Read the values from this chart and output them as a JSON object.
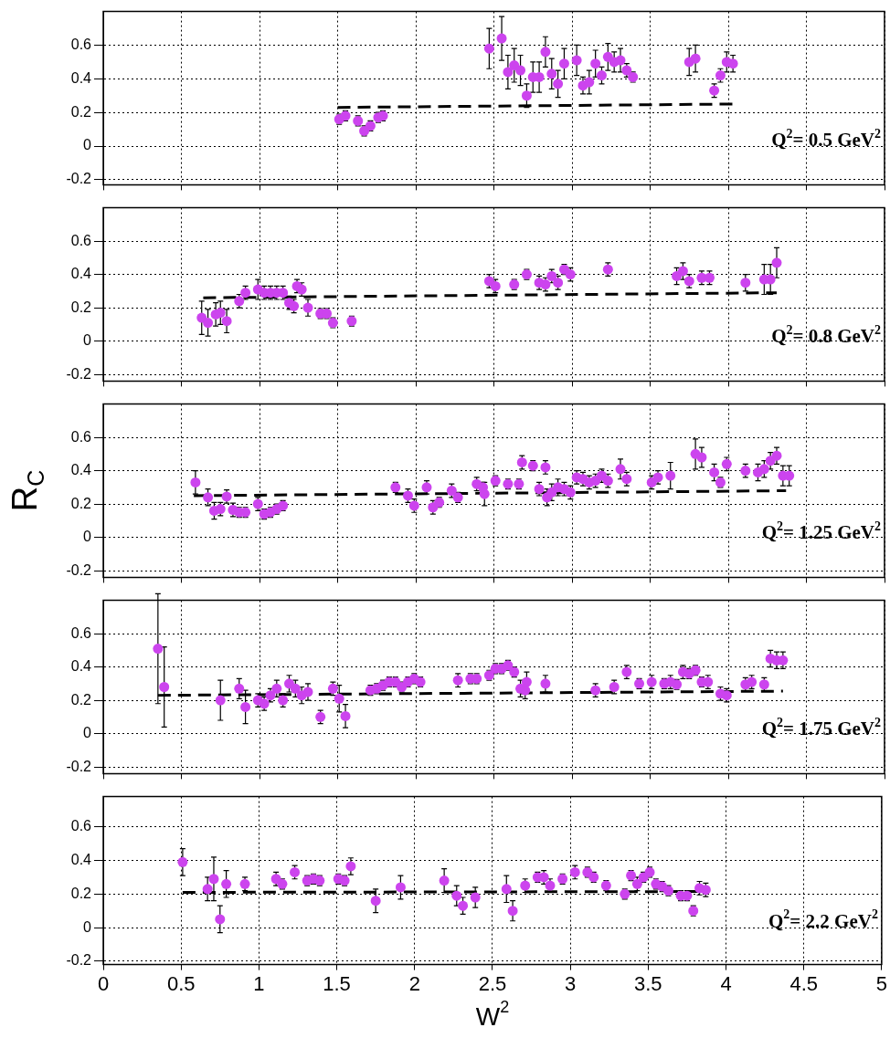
{
  "chart_data": [
    {
      "type": "scatter",
      "marker": "circle",
      "grid": true,
      "tick_labels": "y",
      "xlim": [
        0,
        5
      ],
      "xticks": [
        0,
        0.5,
        1,
        1.5,
        2,
        2.5,
        3,
        3.5,
        4,
        4.5,
        5
      ],
      "ylim": [
        -0.23,
        0.8
      ],
      "yticks": [
        -0.2,
        0,
        0.2,
        0.4,
        0.6
      ],
      "annotations": [
        "Q$^{2}$= 0.5 GeV$^{2}$"
      ],
      "series": [
        {
          "color": "#cc44ee",
          "x": [
            1.51,
            1.55,
            1.63,
            1.67,
            1.71,
            1.76,
            1.79,
            2.47,
            2.55,
            2.59,
            2.63,
            2.67,
            2.71,
            2.75,
            2.79,
            2.83,
            2.87,
            2.91,
            2.95,
            3.03,
            3.07,
            3.11,
            3.15,
            3.19,
            3.23,
            3.27,
            3.31,
            3.35,
            3.39,
            3.75,
            3.79,
            3.91,
            3.95,
            3.99,
            4.03
          ],
          "values": [
            0.16,
            0.18,
            0.15,
            0.09,
            0.12,
            0.17,
            0.18,
            0.58,
            0.64,
            0.44,
            0.48,
            0.45,
            0.3,
            0.41,
            0.41,
            0.56,
            0.43,
            0.37,
            0.49,
            0.51,
            0.36,
            0.38,
            0.49,
            0.42,
            0.53,
            0.5,
            0.51,
            0.45,
            0.41,
            0.5,
            0.52,
            0.33,
            0.42,
            0.5,
            0.49
          ],
          "errors": [
            0.03,
            0.03,
            0.03,
            0.03,
            0.03,
            0.03,
            0.03,
            0.12,
            0.13,
            0.1,
            0.1,
            0.09,
            0.07,
            0.09,
            0.09,
            0.09,
            0.09,
            0.08,
            0.09,
            0.09,
            0.05,
            0.07,
            0.08,
            0.05,
            0.08,
            0.06,
            0.07,
            0.04,
            0.03,
            0.08,
            0.08,
            0.04,
            0.04,
            0.06,
            0.05
          ]
        },
        {
          "type": "line",
          "color": "#000000",
          "line_style": "dashed",
          "marker": "none",
          "x": [
            1.5,
            4.03
          ],
          "values": [
            0.23,
            0.25
          ]
        }
      ]
    },
    {
      "type": "scatter",
      "marker": "circle",
      "grid": true,
      "tick_labels": "y",
      "xlim": [
        0,
        5
      ],
      "xticks": [
        0,
        0.5,
        1,
        1.5,
        2,
        2.5,
        3,
        3.5,
        4,
        4.5,
        5
      ],
      "ylim": [
        -0.24,
        0.8
      ],
      "yticks": [
        -0.2,
        0,
        0.2,
        0.4,
        0.6
      ],
      "annotations": [
        "Q$^{2}$= 0.8 GeV$^{2}$"
      ],
      "series": [
        {
          "color": "#cc44ee",
          "x": [
            0.63,
            0.67,
            0.72,
            0.75,
            0.79,
            0.87,
            0.91,
            0.99,
            1.03,
            1.07,
            1.11,
            1.15,
            1.19,
            1.22,
            1.24,
            1.27,
            1.31,
            1.39,
            1.43,
            1.47,
            1.59,
            2.47,
            2.51,
            2.63,
            2.71,
            2.79,
            2.83,
            2.87,
            2.91,
            2.95,
            2.99,
            3.23,
            3.67,
            3.71,
            3.75,
            3.83,
            3.88,
            4.11,
            4.23,
            4.27,
            4.31
          ],
          "values": [
            0.14,
            0.11,
            0.16,
            0.17,
            0.12,
            0.24,
            0.29,
            0.31,
            0.29,
            0.29,
            0.29,
            0.29,
            0.23,
            0.21,
            0.33,
            0.31,
            0.2,
            0.165,
            0.165,
            0.11,
            0.12,
            0.36,
            0.33,
            0.34,
            0.4,
            0.35,
            0.34,
            0.39,
            0.35,
            0.43,
            0.4,
            0.43,
            0.39,
            0.42,
            0.36,
            0.38,
            0.38,
            0.35,
            0.37,
            0.37,
            0.47
          ],
          "errors": [
            0.1,
            0.08,
            0.07,
            0.07,
            0.07,
            0.04,
            0.04,
            0.06,
            0.04,
            0.04,
            0.04,
            0.04,
            0.04,
            0.04,
            0.04,
            0.04,
            0.05,
            0.03,
            0.03,
            0.03,
            0.03,
            0.04,
            0.04,
            0.03,
            0.03,
            0.04,
            0.04,
            0.04,
            0.04,
            0.03,
            0.04,
            0.04,
            0.05,
            0.05,
            0.04,
            0.04,
            0.04,
            0.05,
            0.09,
            0.09,
            0.09
          ]
        },
        {
          "type": "line",
          "color": "#000000",
          "line_style": "dashed",
          "marker": "none",
          "x": [
            0.64,
            4.31
          ],
          "values": [
            0.26,
            0.29
          ]
        }
      ]
    },
    {
      "type": "scatter",
      "marker": "circle",
      "grid": true,
      "tick_labels": "y",
      "ylabel": "R$_{C}$",
      "xlim": [
        0,
        5
      ],
      "xticks": [
        0,
        0.5,
        1,
        1.5,
        2,
        2.5,
        3,
        3.5,
        4,
        4.5,
        5
      ],
      "ylim": [
        -0.24,
        0.8
      ],
      "yticks": [
        -0.2,
        0,
        0.2,
        0.4,
        0.6
      ],
      "annotations": [
        "Q$^{2}$= 1.25 GeV$^{2}$"
      ],
      "series": [
        {
          "color": "#cc44ee",
          "x": [
            0.59,
            0.67,
            0.71,
            0.75,
            0.79,
            0.83,
            0.87,
            0.91,
            0.99,
            1.03,
            1.07,
            1.11,
            1.15,
            1.87,
            1.95,
            1.99,
            2.07,
            2.11,
            2.15,
            2.23,
            2.27,
            2.39,
            2.43,
            2.44,
            2.51,
            2.59,
            2.66,
            2.68,
            2.75,
            2.79,
            2.83,
            2.84,
            2.87,
            2.91,
            2.95,
            2.99,
            3.03,
            3.07,
            3.11,
            3.15,
            3.19,
            3.23,
            3.31,
            3.35,
            3.51,
            3.55,
            3.63,
            3.79,
            3.83,
            3.91,
            3.95,
            3.99,
            4.11,
            4.19,
            4.23,
            4.27,
            4.31,
            4.35,
            4.39
          ],
          "values": [
            0.33,
            0.24,
            0.16,
            0.17,
            0.245,
            0.165,
            0.15,
            0.15,
            0.2,
            0.14,
            0.15,
            0.17,
            0.19,
            0.3,
            0.25,
            0.19,
            0.3,
            0.18,
            0.21,
            0.28,
            0.24,
            0.32,
            0.3,
            0.26,
            0.34,
            0.32,
            0.32,
            0.45,
            0.43,
            0.29,
            0.42,
            0.24,
            0.27,
            0.3,
            0.29,
            0.27,
            0.36,
            0.35,
            0.33,
            0.34,
            0.37,
            0.34,
            0.41,
            0.35,
            0.33,
            0.36,
            0.37,
            0.5,
            0.48,
            0.39,
            0.33,
            0.44,
            0.4,
            0.39,
            0.41,
            0.46,
            0.49,
            0.37,
            0.37
          ],
          "errors": [
            0.07,
            0.05,
            0.05,
            0.04,
            0.04,
            0.04,
            0.03,
            0.03,
            0.04,
            0.03,
            0.03,
            0.03,
            0.03,
            0.03,
            0.04,
            0.04,
            0.04,
            0.04,
            0.03,
            0.04,
            0.03,
            0.04,
            0.03,
            0.07,
            0.03,
            0.03,
            0.03,
            0.04,
            0.03,
            0.04,
            0.04,
            0.05,
            0.05,
            0.05,
            0.04,
            0.04,
            0.04,
            0.04,
            0.04,
            0.04,
            0.04,
            0.04,
            0.06,
            0.04,
            0.04,
            0.04,
            0.08,
            0.09,
            0.06,
            0.05,
            0.03,
            0.04,
            0.04,
            0.05,
            0.05,
            0.05,
            0.05,
            0.06,
            0.06
          ]
        },
        {
          "type": "line",
          "color": "#000000",
          "line_style": "dashed",
          "marker": "none",
          "x": [
            0.58,
            4.37
          ],
          "values": [
            0.25,
            0.28
          ]
        }
      ]
    },
    {
      "type": "scatter",
      "marker": "circle",
      "grid": true,
      "tick_labels": "y",
      "xlim": [
        0,
        5
      ],
      "xticks": [
        0,
        0.5,
        1,
        1.5,
        2,
        2.5,
        3,
        3.5,
        4,
        4.5,
        5
      ],
      "ylim": [
        -0.24,
        0.8
      ],
      "yticks": [
        -0.2,
        0,
        0.2,
        0.4,
        0.6
      ],
      "annotations": [
        "Q$^{2}$= 1.75 GeV$^{2}$"
      ],
      "series": [
        {
          "color": "#cc44ee",
          "x": [
            0.35,
            0.39,
            0.75,
            0.87,
            0.91,
            0.99,
            1.03,
            1.07,
            1.11,
            1.15,
            1.19,
            1.23,
            1.27,
            1.31,
            1.39,
            1.47,
            1.51,
            1.55,
            1.71,
            1.75,
            1.79,
            1.83,
            1.87,
            1.91,
            1.95,
            1.99,
            2.03,
            2.27,
            2.35,
            2.39,
            2.47,
            2.51,
            2.55,
            2.59,
            2.63,
            2.67,
            2.7,
            2.71,
            2.83,
            3.15,
            3.27,
            3.35,
            3.43,
            3.51,
            3.59,
            3.63,
            3.67,
            3.71,
            3.75,
            3.79,
            3.83,
            3.87,
            3.95,
            3.99,
            4.11,
            4.15,
            4.23,
            4.27,
            4.31,
            4.35
          ],
          "values": [
            0.51,
            0.28,
            0.2,
            0.27,
            0.16,
            0.2,
            0.18,
            0.23,
            0.27,
            0.2,
            0.3,
            0.27,
            0.23,
            0.25,
            0.1,
            0.27,
            0.21,
            0.105,
            0.26,
            0.27,
            0.29,
            0.31,
            0.31,
            0.28,
            0.31,
            0.33,
            0.31,
            0.32,
            0.33,
            0.33,
            0.35,
            0.39,
            0.39,
            0.41,
            0.37,
            0.27,
            0.26,
            0.31,
            0.3,
            0.26,
            0.28,
            0.37,
            0.3,
            0.31,
            0.3,
            0.31,
            0.295,
            0.37,
            0.36,
            0.38,
            0.31,
            0.31,
            0.24,
            0.23,
            0.295,
            0.31,
            0.295,
            0.45,
            0.44,
            0.44
          ],
          "errors": [
            0.33,
            0.24,
            0.12,
            0.06,
            0.1,
            0.04,
            0.04,
            0.04,
            0.05,
            0.04,
            0.05,
            0.05,
            0.05,
            0.05,
            0.04,
            0.04,
            0.08,
            0.07,
            0.03,
            0.03,
            0.03,
            0.03,
            0.03,
            0.03,
            0.03,
            0.03,
            0.03,
            0.04,
            0.03,
            0.03,
            0.03,
            0.03,
            0.03,
            0.03,
            0.03,
            0.05,
            0.05,
            0.06,
            0.05,
            0.04,
            0.04,
            0.04,
            0.03,
            0.04,
            0.03,
            0.04,
            0.03,
            0.04,
            0.03,
            0.03,
            0.03,
            0.04,
            0.04,
            0.04,
            0.04,
            0.04,
            0.04,
            0.05,
            0.05,
            0.05
          ]
        },
        {
          "type": "line",
          "color": "#000000",
          "line_style": "dashed",
          "marker": "none",
          "x": [
            0.35,
            4.35
          ],
          "values": [
            0.23,
            0.255
          ]
        }
      ]
    },
    {
      "type": "scatter",
      "marker": "circle",
      "grid": true,
      "xlabel": "W$^{2}$",
      "xlim": [
        0,
        5
      ],
      "xticks": [
        0,
        0.5,
        1,
        1.5,
        2,
        2.5,
        3,
        3.5,
        4,
        4.5,
        5
      ],
      "ylim": [
        -0.22,
        0.78
      ],
      "yticks": [
        -0.2,
        0,
        0.2,
        0.4,
        0.6
      ],
      "annotations": [
        "Q$^{2}$= 2.2 GeV$^{2}$"
      ],
      "series": [
        {
          "color": "#cc44ee",
          "x": [
            0.51,
            0.67,
            0.71,
            0.75,
            0.79,
            0.91,
            1.11,
            1.15,
            1.23,
            1.31,
            1.35,
            1.39,
            1.51,
            1.55,
            1.59,
            1.75,
            1.91,
            2.19,
            2.27,
            2.31,
            2.39,
            2.59,
            2.63,
            2.71,
            2.79,
            2.83,
            2.87,
            2.95,
            3.03,
            3.11,
            3.15,
            3.23,
            3.35,
            3.39,
            3.43,
            3.47,
            3.51,
            3.55,
            3.59,
            3.63,
            3.71,
            3.75,
            3.79,
            3.83,
            3.87
          ],
          "values": [
            0.39,
            0.23,
            0.29,
            0.05,
            0.26,
            0.26,
            0.29,
            0.26,
            0.33,
            0.28,
            0.29,
            0.28,
            0.29,
            0.28,
            0.365,
            0.16,
            0.24,
            0.28,
            0.19,
            0.13,
            0.18,
            0.23,
            0.1,
            0.25,
            0.3,
            0.3,
            0.25,
            0.29,
            0.33,
            0.33,
            0.3,
            0.25,
            0.2,
            0.31,
            0.26,
            0.3,
            0.33,
            0.26,
            0.245,
            0.22,
            0.19,
            0.19,
            0.1,
            0.235,
            0.225
          ],
          "errors": [
            0.08,
            0.07,
            0.13,
            0.08,
            0.08,
            0.04,
            0.04,
            0.03,
            0.04,
            0.03,
            0.03,
            0.03,
            0.03,
            0.03,
            0.05,
            0.07,
            0.07,
            0.07,
            0.06,
            0.05,
            0.06,
            0.08,
            0.06,
            0.04,
            0.03,
            0.04,
            0.04,
            0.03,
            0.04,
            0.03,
            0.03,
            0.03,
            0.03,
            0.03,
            0.04,
            0.03,
            0.03,
            0.03,
            0.03,
            0.03,
            0.03,
            0.03,
            0.03,
            0.04,
            0.04
          ]
        },
        {
          "type": "line",
          "color": "#000000",
          "line_style": "dashed",
          "marker": "none",
          "x": [
            0.51,
            3.88
          ],
          "values": [
            0.21,
            0.215
          ]
        }
      ]
    }
  ]
}
